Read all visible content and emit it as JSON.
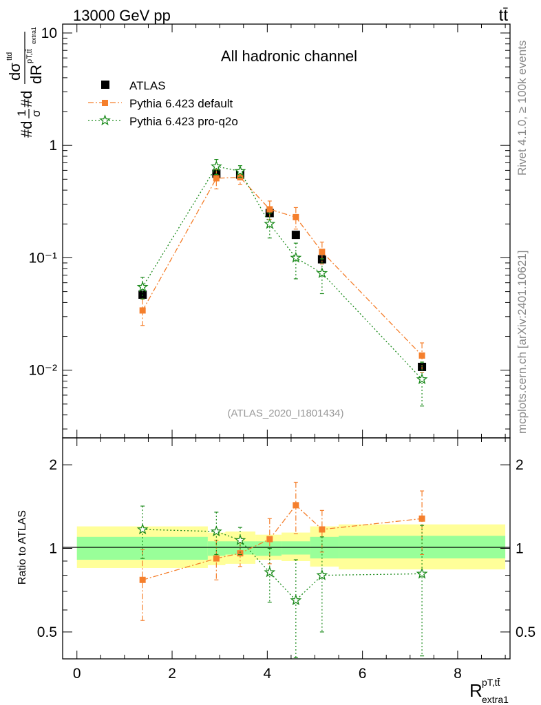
{
  "header": {
    "energy": "13000 GeV pp",
    "process": "tt̄"
  },
  "side_labels": {
    "rivet": "Rivet 4.1.0, ≥ 100k events",
    "mcplots": "mcplots.cern.ch [arXiv:2401.10621]"
  },
  "chart_data": {
    "type": "scatter",
    "title": "All hadronic channel",
    "analysis": "(ATLAS_2020_I1801434)",
    "xlabel": {
      "main": "R",
      "sup": "pT,tt̄",
      "sub": "extra1"
    },
    "ylabel": "#d1/σ #d dσᵗᵗ / dR^{pT,tt̄}_{extra1}",
    "ratio_ylabel": "Ratio to ATLAS",
    "xlim": [
      -0.3,
      9.1
    ],
    "ylim": [
      0.0025,
      12
    ],
    "yscale": "log",
    "ratio_ylim": [
      0.4,
      2.5
    ],
    "x_ticks": [
      0,
      2,
      4,
      6,
      8
    ],
    "y_ticks": [
      {
        "value": 10,
        "label": "10"
      },
      {
        "value": 1,
        "label": "1"
      },
      {
        "value": 0.1,
        "label": "10⁻¹"
      },
      {
        "value": 0.01,
        "label": "10⁻²"
      }
    ],
    "ratio_ticks": [
      {
        "value": 2,
        "label": "2"
      },
      {
        "value": 1,
        "label": "1"
      },
      {
        "value": 0.5,
        "label": "0.5"
      }
    ],
    "legend": [
      "ATLAS",
      "Pythia 6.423 default",
      "Pythia 6.423 pro-q2o"
    ],
    "legend_position": "top-left",
    "series": [
      {
        "name": "ATLAS",
        "color": "#000000",
        "marker": "square",
        "x": [
          1.38,
          2.93,
          3.43,
          4.05,
          4.6,
          5.15,
          7.25
        ],
        "y": [
          0.047,
          0.56,
          0.55,
          0.25,
          0.16,
          0.097,
          0.0107
        ]
      },
      {
        "name": "Pythia 6.423 default",
        "color": "#f57f2c",
        "marker": "square",
        "dash": "8,3,2,3",
        "x": [
          1.38,
          2.93,
          3.43,
          4.05,
          4.6,
          5.15,
          7.25
        ],
        "y": [
          0.034,
          0.51,
          0.52,
          0.27,
          0.23,
          0.113,
          0.0135
        ],
        "err": [
          0.009,
          0.1,
          0.07,
          0.05,
          0.05,
          0.025,
          0.004
        ],
        "ratio": [
          0.77,
          0.92,
          0.96,
          1.08,
          1.43,
          1.17,
          1.28
        ],
        "ratio_err": [
          0.22,
          0.15,
          0.1,
          0.2,
          0.3,
          0.2,
          0.33
        ]
      },
      {
        "name": "Pythia 6.423 pro-q2o",
        "color": "#1a8a1a",
        "marker": "star",
        "dash": "2,3",
        "x": [
          1.38,
          2.93,
          3.43,
          4.05,
          4.6,
          5.15,
          7.25
        ],
        "y": [
          0.055,
          0.65,
          0.59,
          0.2,
          0.1,
          0.073,
          0.0083
        ],
        "err": [
          0.012,
          0.1,
          0.07,
          0.05,
          0.035,
          0.025,
          0.0035
        ],
        "ratio": [
          1.17,
          1.15,
          1.07,
          0.82,
          0.65,
          0.8,
          0.81
        ],
        "ratio_err": [
          0.25,
          0.2,
          0.12,
          0.18,
          0.26,
          0.3,
          0.4
        ]
      }
    ],
    "ratio_bands": {
      "edges": [
        0.0,
        2.75,
        3.12,
        3.75,
        4.3,
        4.9,
        5.5,
        9.0
      ],
      "stat": [
        [
          0.91,
          1.1
        ],
        [
          0.94,
          1.06
        ],
        [
          0.95,
          1.06
        ],
        [
          0.94,
          1.06
        ],
        [
          0.95,
          1.06
        ],
        [
          0.92,
          1.1
        ],
        [
          0.92,
          1.11
        ]
      ],
      "total": [
        [
          0.85,
          1.2
        ],
        [
          0.87,
          1.14
        ],
        [
          0.88,
          1.15
        ],
        [
          0.91,
          1.12
        ],
        [
          0.9,
          1.14
        ],
        [
          0.86,
          1.2
        ],
        [
          0.84,
          1.22
        ]
      ]
    }
  }
}
